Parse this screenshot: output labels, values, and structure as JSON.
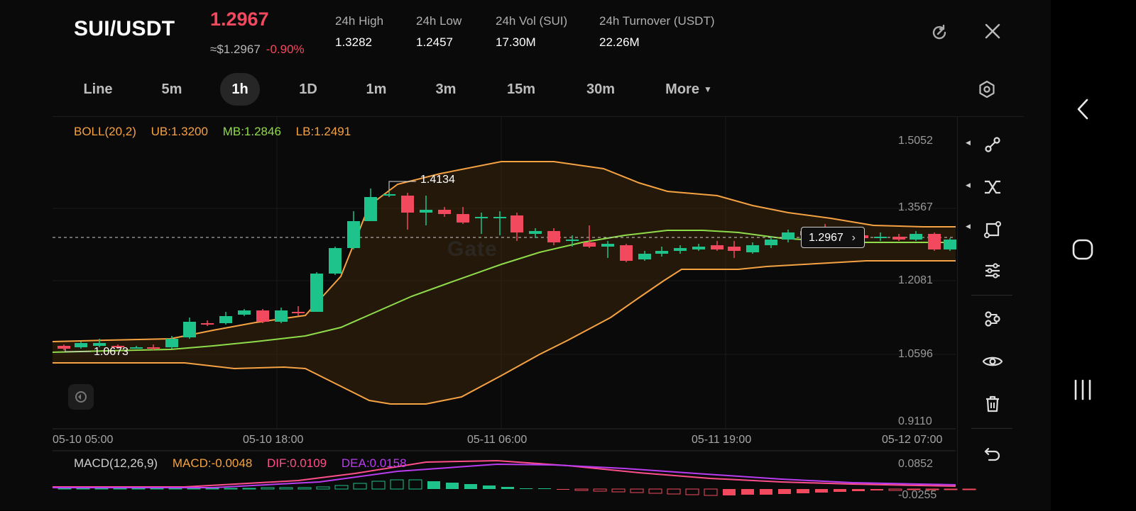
{
  "header": {
    "pair": "SUI/USDT",
    "price": "1.2967",
    "usd_price": "≈$1.2967",
    "change": "-0.90%",
    "stats": [
      {
        "label": "24h   High",
        "value": "1.3282"
      },
      {
        "label": "24h   Low",
        "value": "1.2457"
      },
      {
        "label": "24h   Vol (SUI)",
        "value": "17.30M"
      },
      {
        "label": "24h   Turnover (USDT)",
        "value": "22.26M"
      }
    ],
    "icons": [
      "refresh-icon",
      "close-icon"
    ]
  },
  "tabs": {
    "items": [
      "Line",
      "5m",
      "1h",
      "1D",
      "1m",
      "3m",
      "15m",
      "30m",
      "More"
    ],
    "active": "1h"
  },
  "boll": {
    "name": "BOLL(20,2)",
    "ub": "UB:1.3200",
    "mb": "MB:1.2846",
    "lb": "LB:1.2491"
  },
  "macd": {
    "name": "MACD(12,26,9)",
    "macd": "MACD:-0.0048",
    "dif": "DIF:0.0109",
    "dea": "DEA:0.0158"
  },
  "y_axis": [
    "1.5052",
    "1.3567",
    "1.2081",
    "1.0596",
    "0.9110"
  ],
  "macd_axis": [
    "0.0852",
    "-0.0255"
  ],
  "x_axis": [
    "05-10 05:00",
    "05-10 18:00",
    "05-11 06:00",
    "05-11 19:00",
    "05-12 07:00"
  ],
  "labels": {
    "current_price": "1.2967",
    "high_marker": "1.4134",
    "low_marker": "1.0673",
    "watermark": "Gate"
  },
  "colors": {
    "up": "#1ec28b",
    "down": "#f2495e",
    "ub": "#f5a243",
    "mb": "#8fdc4a",
    "dif": "#ff4f8b",
    "dea": "#b93cf0"
  },
  "toolbar": [
    "connect-icon",
    "cross-line-icon",
    "shape-icon",
    "sliders-icon",
    "nodes-icon",
    "eye-icon",
    "trash-icon",
    "undo-icon"
  ],
  "nav": [
    "back-icon",
    "home-icon",
    "recents-icon"
  ]
}
